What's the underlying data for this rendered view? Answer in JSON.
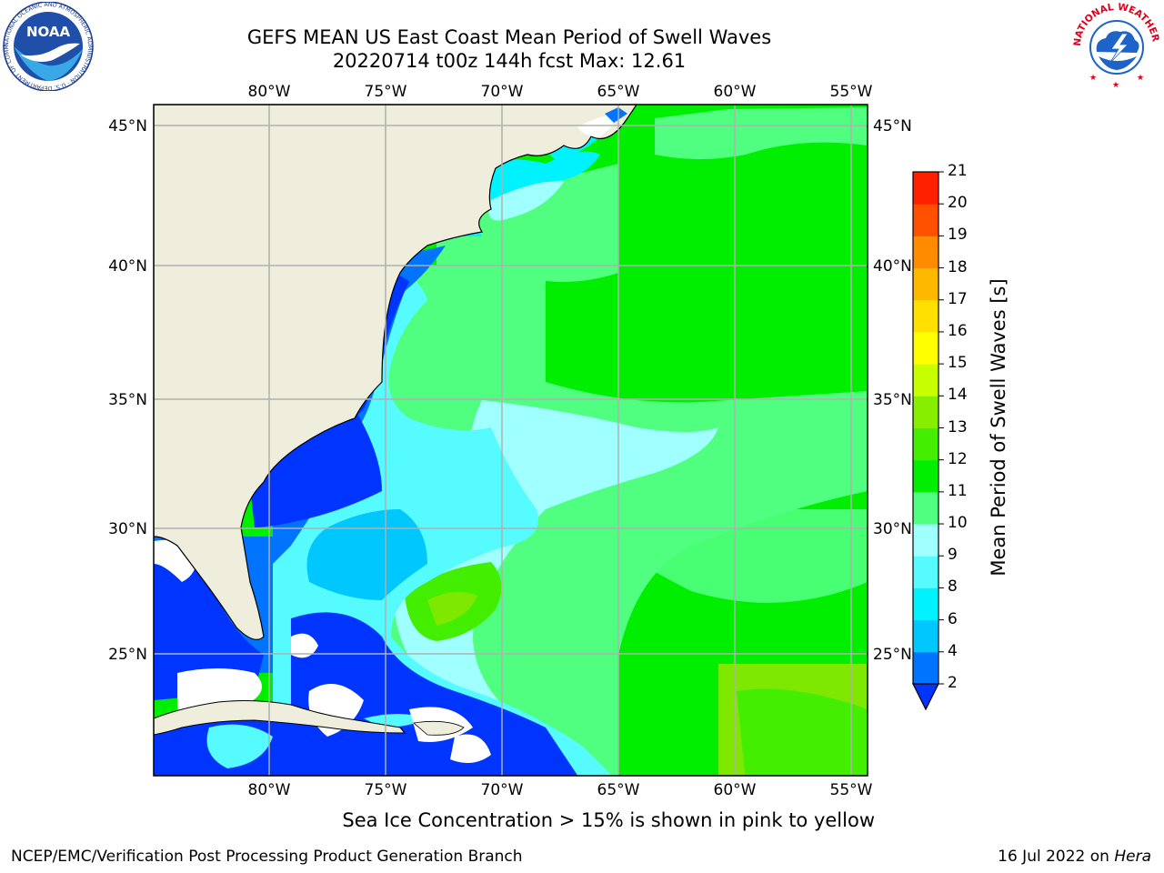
{
  "title": {
    "line1": "GEFS MEAN US East Coast Mean Period of Swell Waves",
    "line2": "20220714 t00z 144h fcst   Max: 12.61"
  },
  "axes": {
    "lon_labels": [
      "80°W",
      "75°W",
      "70°W",
      "65°W",
      "60°W",
      "55°W"
    ],
    "lat_labels": [
      "45°N",
      "40°N",
      "35°N",
      "30°N",
      "25°N"
    ]
  },
  "colorbar": {
    "title": "Mean Period of Swell Waves [s]",
    "ticks": [
      "2",
      "4",
      "6",
      "8",
      "9",
      "10",
      "11",
      "12",
      "13",
      "14",
      "15",
      "16",
      "17",
      "18",
      "19",
      "20",
      "21"
    ],
    "colors": [
      "#0034ff",
      "#0074ff",
      "#00c8ff",
      "#00f2ff",
      "#56fbff",
      "#a0ffff",
      "#50ff80",
      "#00ee00",
      "#44ee00",
      "#88ee00",
      "#c8ff00",
      "#ffff00",
      "#ffe000",
      "#ffb800",
      "#ff8c00",
      "#ff5000",
      "#ff2000",
      "#ff0000"
    ]
  },
  "caption": "Sea Ice Concentration > 15% is shown in pink to yellow",
  "footer": {
    "left": "NCEP/EMC/Verification Post Processing Product Generation Branch",
    "right_prefix": "16 Jul 2022 on ",
    "right_machine": "Hera"
  },
  "logos": {
    "noaa_text": "NOAA",
    "noaa_ring": "NATIONAL OCEANIC AND ATMOSPHERIC ADMINISTRATION · U.S. DEPARTMENT OF COMMERCE",
    "nws_ring": "NATIONAL WEATHER SERVICE"
  },
  "colors": {
    "land": "#efeedd",
    "grid": "#b0b0b0",
    "water_white": "#ffffff"
  }
}
